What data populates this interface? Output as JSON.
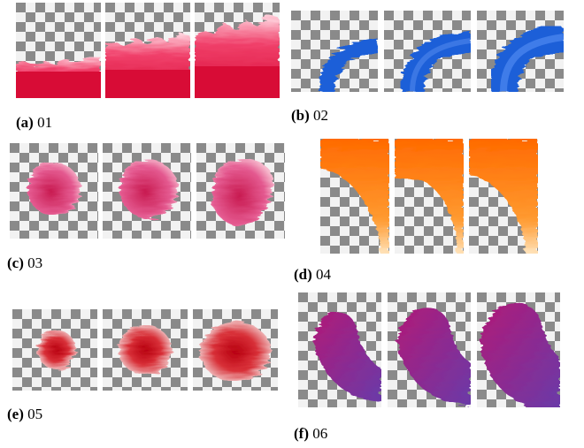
{
  "panels": [
    {
      "id": "a",
      "label": "(a)",
      "text": "01"
    },
    {
      "id": "b",
      "label": "(b)",
      "text": "02"
    },
    {
      "id": "c",
      "label": "(c)",
      "text": "03"
    },
    {
      "id": "d",
      "label": "(d)",
      "text": "04"
    },
    {
      "id": "e",
      "label": "(e)",
      "text": "05"
    },
    {
      "id": "f",
      "label": "(f)",
      "text": "06"
    }
  ],
  "colors": {
    "checker_light": "#f2f2f2",
    "checker_dark": "#8a8a8a",
    "crimson": "#e0143c",
    "blue": "#1a5fd8",
    "pink": "#e0508c",
    "orange": "#ff7a10",
    "red": "#c81e28",
    "purple": "#8a2a9a"
  }
}
